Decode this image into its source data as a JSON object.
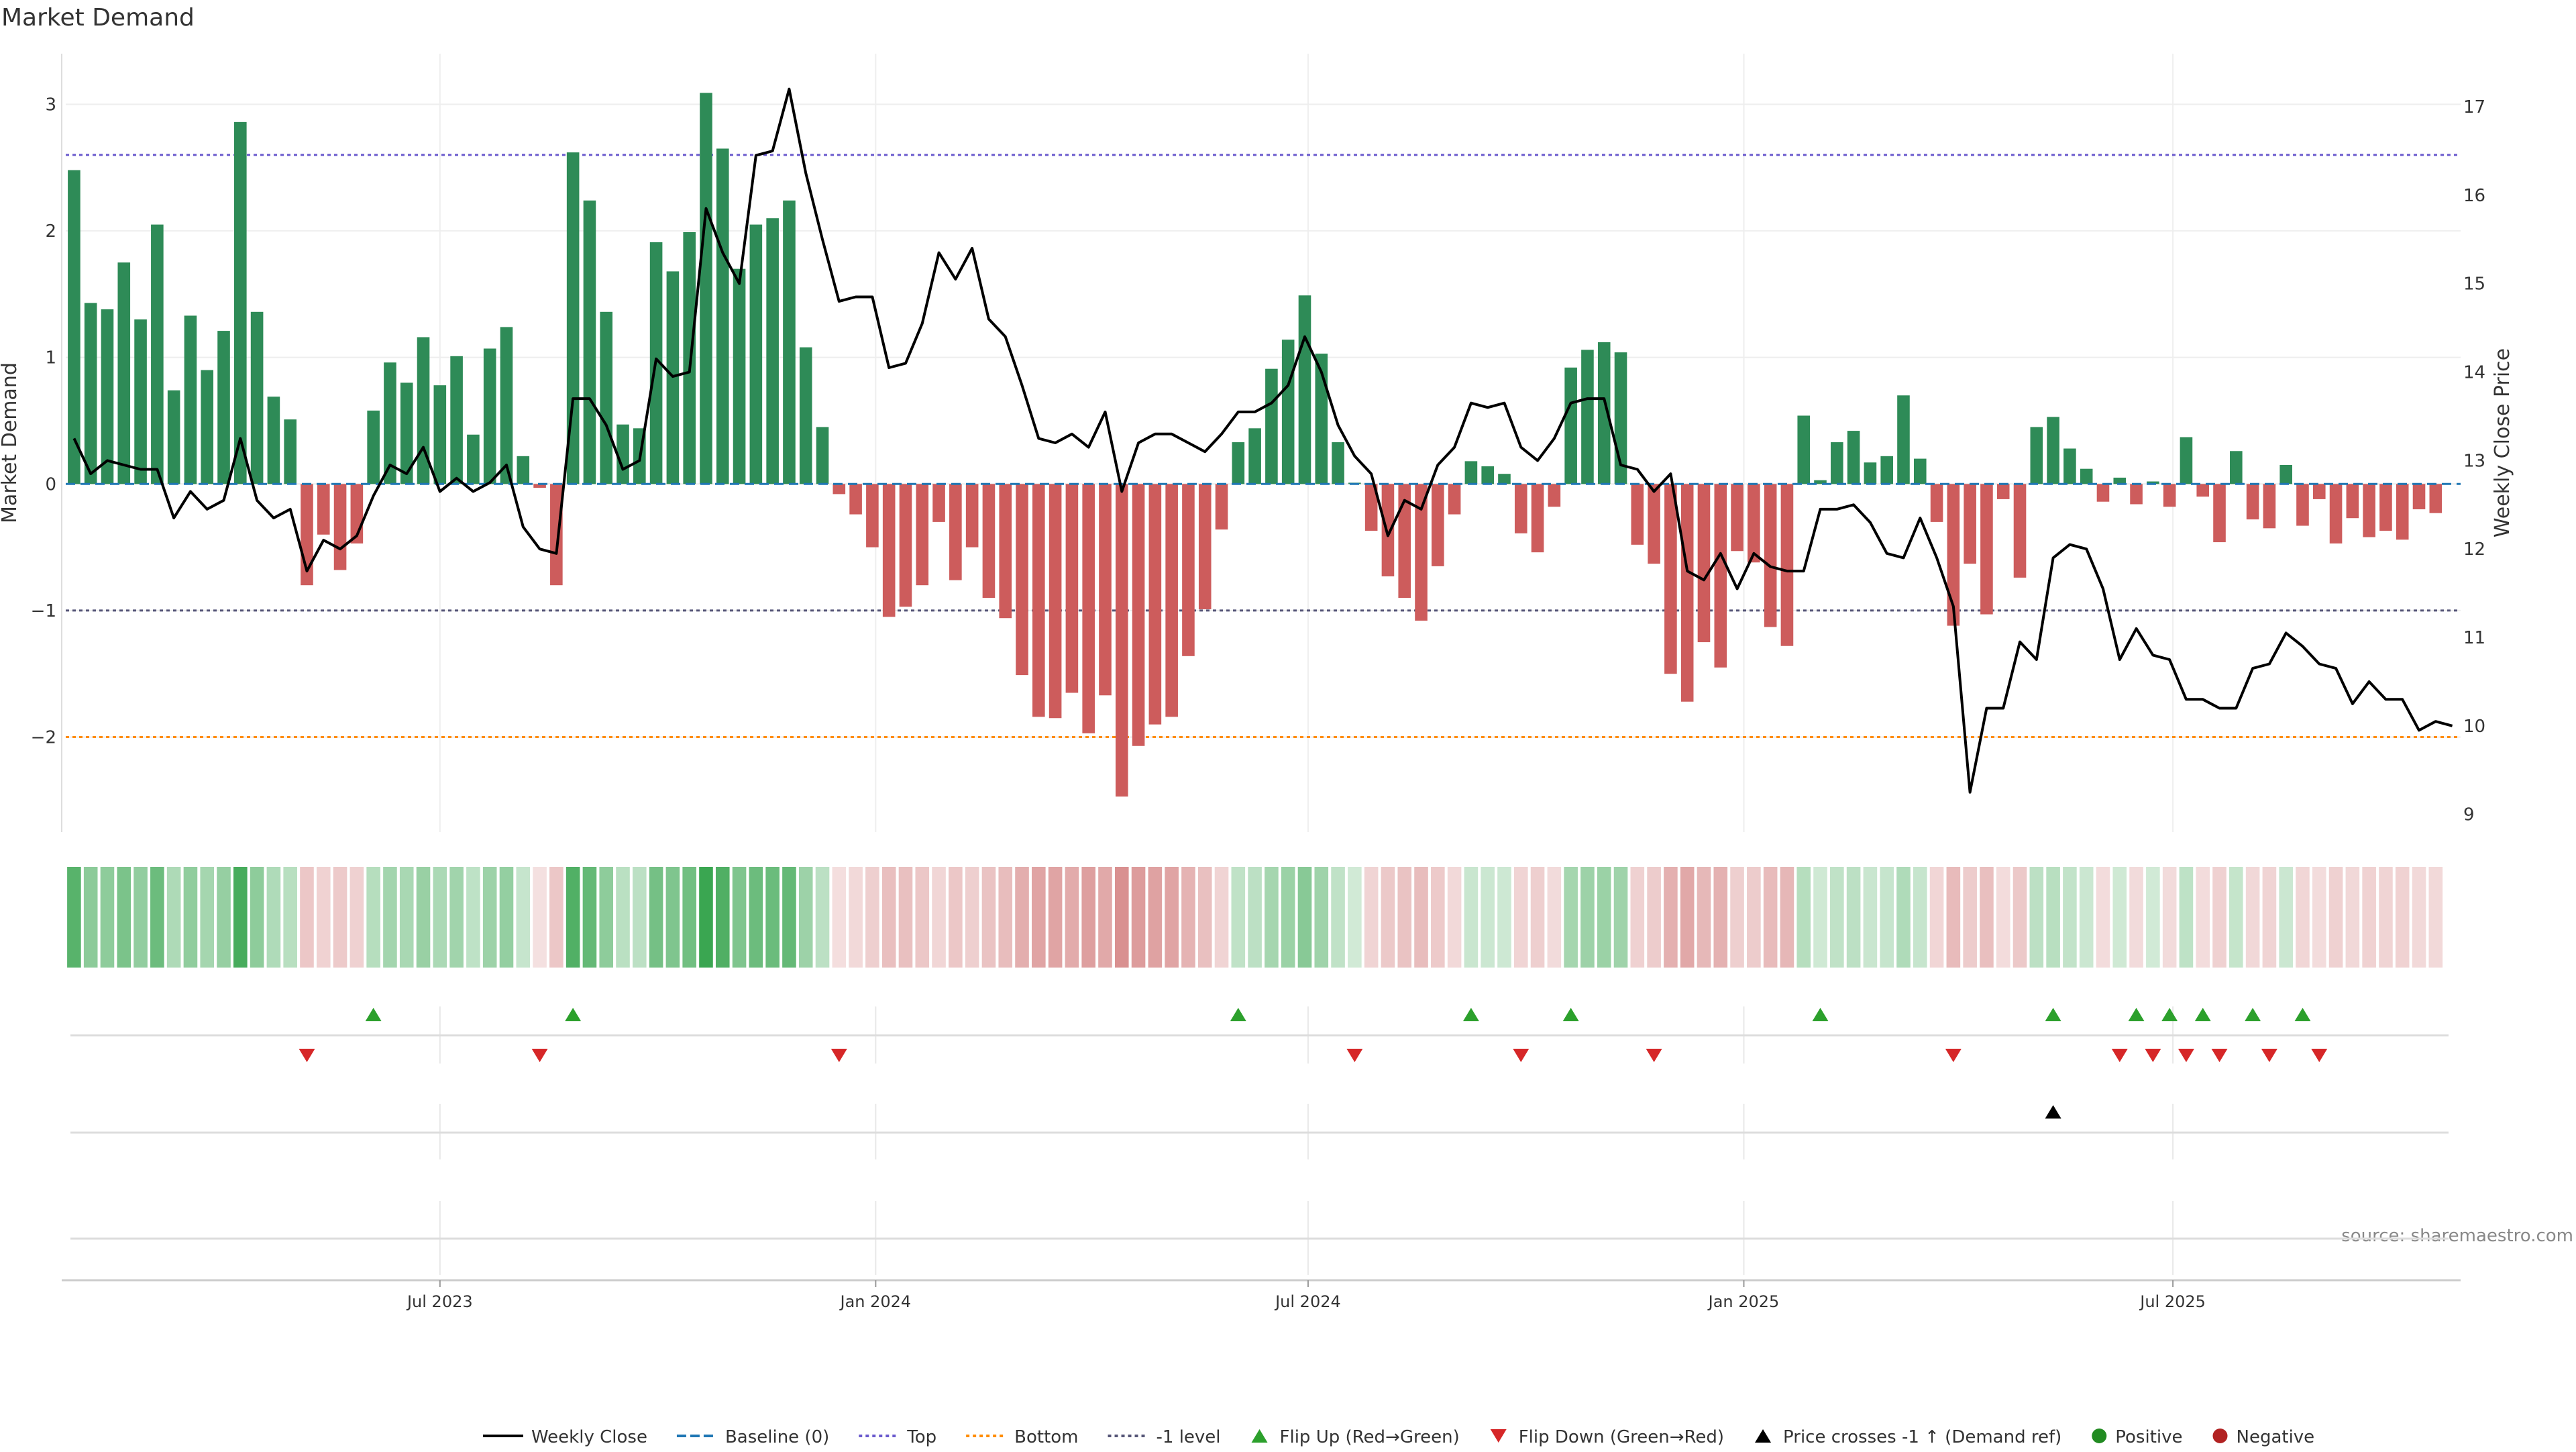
{
  "chart_data": {
    "type": "bar",
    "title": "Market Demand",
    "ylabel_left": "Market Demand",
    "ylabel_right": "Weekly Close Price",
    "source_text": "source: sharemaestro.com",
    "ylim_left": [
      -2.75,
      3.4
    ],
    "ylim_right": [
      8.8,
      17.6
    ],
    "yticks_left": [
      "3",
      "2",
      "1",
      "0",
      "−1",
      "−2"
    ],
    "yticks_left_values": [
      3,
      2,
      1,
      0,
      -1,
      -2
    ],
    "yticks_right": [
      "17",
      "16",
      "15",
      "14",
      "13",
      "12",
      "11",
      "10",
      "9"
    ],
    "yticks_right_values": [
      17,
      16,
      15,
      14,
      13,
      12,
      11,
      10,
      9
    ],
    "x_week_count": 144,
    "xticks": [
      {
        "label": "Jul 2023",
        "week": 22
      },
      {
        "label": "Jan 2024",
        "week": 48.2
      },
      {
        "label": "Jul 2024",
        "week": 74.2
      },
      {
        "label": "Jan 2025",
        "week": 100.4
      },
      {
        "label": "Jul 2025",
        "week": 126.2
      }
    ],
    "reference_lines": {
      "top": 2.6,
      "bottom": -2.0,
      "minus_one": -1.0,
      "baseline": 0
    },
    "colors": {
      "positive": "#2e8b57",
      "negative": "#cd5c5c",
      "price": "#000000",
      "baseline": "#1f77b4",
      "top": "#6a5acd",
      "bottom": "#ff8c00",
      "minus_one": "#555577",
      "flip_up": "#2ca02c",
      "flip_down": "#d62728",
      "cross": "#000000",
      "legend_positive": "#228b22",
      "legend_negative": "#b22222"
    },
    "demand": [
      2.48,
      1.43,
      1.38,
      1.75,
      1.3,
      2.05,
      0.74,
      1.33,
      0.9,
      1.21,
      2.86,
      1.36,
      0.69,
      0.51,
      -0.8,
      -0.4,
      -0.68,
      -0.47,
      0.58,
      0.96,
      0.8,
      1.16,
      0.78,
      1.01,
      0.39,
      1.07,
      1.24,
      0.22,
      -0.03,
      -0.8,
      2.62,
      2.24,
      1.36,
      0.47,
      0.44,
      1.91,
      1.68,
      1.99,
      3.09,
      2.65,
      1.7,
      2.05,
      2.1,
      2.24,
      1.08,
      0.45,
      -0.08,
      -0.24,
      -0.5,
      -1.05,
      -0.97,
      -0.8,
      -0.3,
      -0.76,
      -0.5,
      -0.9,
      -1.06,
      -1.51,
      -1.84,
      -1.85,
      -1.65,
      -1.97,
      -1.67,
      -2.47,
      -2.07,
      -1.9,
      -1.84,
      -1.36,
      -0.99,
      -0.36,
      0.33,
      0.44,
      0.91,
      1.14,
      1.49,
      1.03,
      0.33,
      0.01,
      -0.37,
      -0.73,
      -0.9,
      -1.08,
      -0.65,
      -0.24,
      0.18,
      0.14,
      0.08,
      -0.39,
      -0.54,
      -0.18,
      0.92,
      1.06,
      1.12,
      1.04,
      -0.48,
      -0.63,
      -1.5,
      -1.72,
      -1.25,
      -1.45,
      -0.53,
      -0.62,
      -1.13,
      -1.28,
      0.54,
      0.03,
      0.33,
      0.42,
      0.17,
      0.22,
      0.7,
      0.2,
      -0.3,
      -1.12,
      -0.63,
      -1.03,
      -0.12,
      -0.74,
      0.45,
      0.53,
      0.28,
      0.12,
      -0.14,
      0.05,
      -0.16,
      0.02,
      -0.18,
      0.37,
      -0.1,
      -0.46,
      0.26,
      -0.28,
      -0.35,
      0.15,
      -0.33,
      -0.12,
      -0.47,
      -0.27,
      -0.42,
      -0.37,
      -0.44,
      -0.2,
      -0.23
    ],
    "price": [
      13.25,
      12.85,
      13.0,
      12.95,
      12.9,
      12.9,
      12.35,
      12.65,
      12.45,
      12.55,
      13.25,
      12.55,
      12.35,
      12.45,
      11.75,
      12.1,
      12.0,
      12.15,
      12.6,
      12.95,
      12.85,
      13.15,
      12.65,
      12.8,
      12.65,
      12.75,
      12.95,
      12.25,
      12.0,
      11.95,
      13.7,
      13.7,
      13.4,
      12.9,
      13.0,
      14.15,
      13.95,
      14.0,
      15.85,
      15.35,
      15.0,
      16.45,
      16.5,
      17.2,
      16.25,
      15.5,
      14.8,
      14.85,
      14.85,
      14.05,
      14.1,
      14.55,
      15.35,
      15.05,
      15.4,
      14.6,
      14.4,
      13.85,
      13.25,
      13.2,
      13.3,
      13.15,
      13.55,
      12.65,
      13.2,
      13.3,
      13.3,
      13.2,
      13.1,
      13.3,
      13.55,
      13.55,
      13.65,
      13.85,
      14.4,
      14.0,
      13.4,
      13.05,
      12.85,
      12.15,
      12.55,
      12.45,
      12.95,
      13.15,
      13.65,
      13.6,
      13.65,
      13.15,
      13.0,
      13.25,
      13.65,
      13.7,
      13.7,
      12.95,
      12.9,
      12.65,
      12.85,
      11.75,
      11.65,
      11.95,
      11.55,
      11.95,
      11.8,
      11.75,
      11.75,
      12.45,
      12.45,
      12.5,
      12.3,
      11.95,
      11.9,
      12.35,
      11.9,
      11.35,
      9.25,
      10.2,
      10.2,
      10.95,
      10.75,
      11.9,
      12.05,
      12.0,
      11.55,
      10.75,
      11.1,
      10.8,
      10.75,
      10.3,
      10.3,
      10.2,
      10.2,
      10.65,
      10.7,
      11.05,
      10.9,
      10.7,
      10.65,
      10.25,
      10.5,
      10.3,
      10.3,
      9.95,
      10.05,
      10.0
    ],
    "flip_up_weeks": [
      18,
      30,
      70,
      84,
      90,
      105,
      119,
      124,
      126,
      128,
      131,
      134
    ],
    "flip_down_weeks": [
      14,
      28,
      46,
      77,
      87,
      95,
      113,
      123,
      125,
      127,
      129,
      132,
      135
    ],
    "price_cross_weeks": [
      119
    ],
    "legend": [
      {
        "key": "price",
        "label": "Weekly Close"
      },
      {
        "key": "baseline",
        "label": "Baseline (0)"
      },
      {
        "key": "top",
        "label": "Top"
      },
      {
        "key": "bottom",
        "label": "Bottom"
      },
      {
        "key": "minus_one",
        "label": "-1 level"
      },
      {
        "key": "flip_up",
        "label": "Flip Up (Red→Green)"
      },
      {
        "key": "flip_down",
        "label": "Flip Down (Green→Red)"
      },
      {
        "key": "cross",
        "label": "Price crosses -1 ↑ (Demand ref)"
      },
      {
        "key": "legend_positive",
        "label": "Positive"
      },
      {
        "key": "legend_negative",
        "label": "Negative"
      }
    ]
  }
}
